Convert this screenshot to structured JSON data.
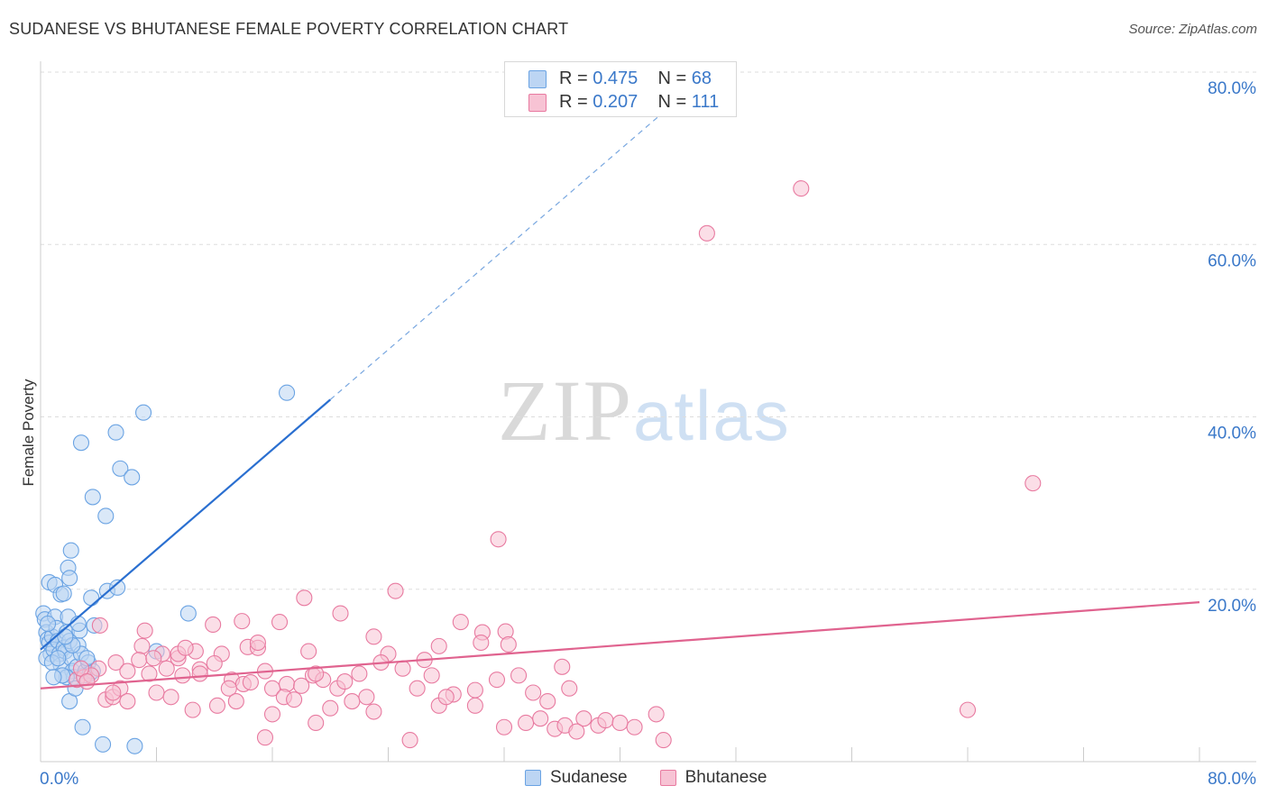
{
  "chart_data": {
    "type": "scatter",
    "title": "SUDANESE VS BHUTANESE FEMALE POVERTY CORRELATION CHART",
    "source": "Source: ZipAtlas.com",
    "ylabel": "Female Poverty",
    "xlabel": "",
    "xlim": [
      0,
      80
    ],
    "ylim": [
      0,
      80
    ],
    "x_tick_labels": [
      "0.0%",
      "80.0%"
    ],
    "y_tick_labels": [
      "20.0%",
      "40.0%",
      "60.0%",
      "80.0%"
    ],
    "y_ticks": [
      20,
      40,
      60,
      80
    ],
    "grid": true,
    "legend": {
      "sudanese": {
        "r_label": "R =",
        "r_value": "0.475",
        "n_label": "N =",
        "n_value": "68"
      },
      "bhutanese": {
        "r_label": "R =",
        "r_value": "0.207",
        "n_label": "N =",
        "n_value": "111"
      }
    },
    "series": [
      {
        "name": "Sudanese",
        "color": "#6aa3e3",
        "fill": "#bcd5f3",
        "trend": {
          "x0": 0,
          "y0": 13.0,
          "x1": 20,
          "y1": 42.0,
          "dash_to_x": 43
        },
        "points": [
          [
            0.2,
            17.2
          ],
          [
            0.3,
            16.5
          ],
          [
            0.4,
            15.0
          ],
          [
            0.5,
            14.2
          ],
          [
            0.6,
            13.8
          ],
          [
            0.7,
            12.5
          ],
          [
            0.8,
            14.5
          ],
          [
            0.4,
            12.0
          ],
          [
            0.9,
            13.0
          ],
          [
            1.0,
            16.8
          ],
          [
            1.1,
            15.5
          ],
          [
            1.2,
            14.0
          ],
          [
            1.3,
            12.5
          ],
          [
            1.4,
            11.2
          ],
          [
            1.5,
            10.0
          ],
          [
            1.6,
            13.2
          ],
          [
            1.7,
            12.8
          ],
          [
            1.8,
            15.0
          ],
          [
            1.9,
            16.8
          ],
          [
            2.0,
            14.0
          ],
          [
            2.1,
            12.0
          ],
          [
            2.2,
            10.5
          ],
          [
            2.3,
            9.8
          ],
          [
            2.5,
            11.0
          ],
          [
            2.6,
            13.5
          ],
          [
            2.7,
            15.2
          ],
          [
            2.8,
            12.5
          ],
          [
            3.0,
            10.0
          ],
          [
            3.1,
            10.5
          ],
          [
            3.3,
            11.5
          ],
          [
            3.4,
            10.2
          ],
          [
            3.6,
            10.5
          ],
          [
            0.6,
            20.8
          ],
          [
            1.0,
            20.5
          ],
          [
            1.4,
            19.4
          ],
          [
            1.6,
            19.5
          ],
          [
            1.9,
            22.5
          ],
          [
            2.0,
            21.3
          ],
          [
            2.1,
            24.5
          ],
          [
            3.5,
            19.0
          ],
          [
            4.6,
            19.8
          ],
          [
            5.3,
            20.2
          ],
          [
            3.7,
            15.8
          ],
          [
            1.8,
            9.8
          ],
          [
            2.0,
            7.0
          ],
          [
            2.4,
            8.5
          ],
          [
            2.9,
            4.0
          ],
          [
            4.3,
            2.0
          ],
          [
            6.5,
            1.8
          ],
          [
            2.8,
            37.0
          ],
          [
            3.6,
            30.7
          ],
          [
            4.5,
            28.5
          ],
          [
            5.2,
            38.2
          ],
          [
            5.5,
            34.0
          ],
          [
            6.3,
            33.0
          ],
          [
            7.1,
            40.5
          ],
          [
            17.0,
            42.8
          ],
          [
            10.2,
            17.2
          ],
          [
            8.0,
            12.8
          ],
          [
            0.8,
            11.5
          ],
          [
            1.2,
            12.0
          ],
          [
            1.5,
            10.0
          ],
          [
            2.2,
            13.5
          ],
          [
            0.9,
            9.8
          ],
          [
            1.7,
            14.5
          ],
          [
            2.6,
            16.0
          ],
          [
            0.5,
            16.0
          ],
          [
            3.2,
            12.0
          ]
        ]
      },
      {
        "name": "Bhutanese",
        "color": "#e87aa0",
        "fill": "#f7c3d4",
        "trend": {
          "x0": 0,
          "y0": 8.5,
          "x1": 80,
          "y1": 18.5
        },
        "points": [
          [
            52.5,
            66.5
          ],
          [
            46.0,
            61.3
          ],
          [
            68.5,
            32.3
          ],
          [
            31.6,
            25.8
          ],
          [
            18.2,
            19.0
          ],
          [
            24.5,
            19.8
          ],
          [
            16.5,
            16.2
          ],
          [
            11.9,
            15.9
          ],
          [
            13.9,
            16.3
          ],
          [
            20.7,
            17.2
          ],
          [
            29.0,
            16.2
          ],
          [
            32.1,
            15.1
          ],
          [
            30.5,
            15.0
          ],
          [
            36.0,
            11.0
          ],
          [
            4.1,
            15.8
          ],
          [
            7.2,
            15.2
          ],
          [
            7.0,
            13.4
          ],
          [
            8.4,
            12.5
          ],
          [
            9.5,
            12.0
          ],
          [
            10.7,
            12.8
          ],
          [
            12.5,
            12.5
          ],
          [
            14.3,
            13.3
          ],
          [
            15.0,
            13.2
          ],
          [
            18.5,
            12.8
          ],
          [
            23.0,
            14.5
          ],
          [
            24.0,
            12.5
          ],
          [
            26.5,
            11.8
          ],
          [
            27.5,
            13.4
          ],
          [
            30.4,
            13.8
          ],
          [
            32.3,
            13.6
          ],
          [
            4.0,
            10.8
          ],
          [
            5.2,
            11.5
          ],
          [
            6.0,
            10.5
          ],
          [
            7.5,
            10.2
          ],
          [
            8.7,
            10.8
          ],
          [
            9.8,
            10.0
          ],
          [
            11.0,
            10.7
          ],
          [
            12.0,
            11.4
          ],
          [
            13.2,
            9.5
          ],
          [
            14.0,
            9.0
          ],
          [
            15.5,
            10.5
          ],
          [
            16.0,
            8.5
          ],
          [
            17.0,
            9.0
          ],
          [
            18.8,
            10.0
          ],
          [
            19.5,
            9.5
          ],
          [
            20.5,
            8.5
          ],
          [
            21.0,
            9.3
          ],
          [
            22.0,
            10.2
          ],
          [
            23.5,
            11.5
          ],
          [
            25.0,
            10.8
          ],
          [
            26.0,
            8.5
          ],
          [
            27.0,
            10.0
          ],
          [
            28.5,
            7.8
          ],
          [
            30.0,
            8.3
          ],
          [
            31.5,
            9.5
          ],
          [
            33.0,
            10.0
          ],
          [
            34.0,
            8.0
          ],
          [
            35.0,
            7.0
          ],
          [
            36.5,
            8.5
          ],
          [
            37.5,
            5.0
          ],
          [
            38.5,
            4.2
          ],
          [
            39.0,
            4.8
          ],
          [
            40.0,
            4.5
          ],
          [
            41.0,
            4.0
          ],
          [
            42.5,
            5.5
          ],
          [
            2.5,
            9.5
          ],
          [
            3.0,
            9.8
          ],
          [
            3.5,
            10.0
          ],
          [
            4.5,
            7.2
          ],
          [
            5.0,
            7.5
          ],
          [
            5.5,
            8.5
          ],
          [
            6.0,
            7.0
          ],
          [
            8.0,
            8.0
          ],
          [
            9.0,
            7.5
          ],
          [
            10.5,
            6.0
          ],
          [
            12.2,
            6.5
          ],
          [
            14.5,
            9.2
          ],
          [
            16.0,
            5.5
          ],
          [
            16.8,
            7.5
          ],
          [
            17.5,
            7.2
          ],
          [
            18.0,
            8.8
          ],
          [
            19.0,
            4.5
          ],
          [
            20.0,
            6.2
          ],
          [
            21.5,
            7.0
          ],
          [
            22.5,
            7.5
          ],
          [
            23.0,
            5.8
          ],
          [
            25.5,
            2.5
          ],
          [
            27.5,
            6.5
          ],
          [
            28.0,
            7.5
          ],
          [
            30.0,
            6.5
          ],
          [
            32.0,
            4.0
          ],
          [
            33.5,
            4.5
          ],
          [
            34.5,
            5.0
          ],
          [
            35.5,
            3.8
          ],
          [
            36.2,
            4.2
          ],
          [
            37.0,
            3.5
          ],
          [
            43.0,
            2.5
          ],
          [
            64.0,
            6.0
          ],
          [
            15.5,
            2.8
          ],
          [
            13.0,
            8.5
          ],
          [
            11.0,
            10.2
          ],
          [
            9.5,
            12.5
          ],
          [
            6.8,
            11.8
          ],
          [
            5.0,
            8.0
          ],
          [
            2.8,
            10.8
          ],
          [
            3.2,
            9.3
          ],
          [
            10.0,
            13.2
          ],
          [
            15.0,
            13.8
          ],
          [
            19.0,
            10.2
          ],
          [
            13.5,
            7.0
          ],
          [
            7.8,
            12.0
          ]
        ]
      }
    ]
  },
  "watermark": {
    "zip": "ZIP",
    "atlas": "atlas"
  }
}
